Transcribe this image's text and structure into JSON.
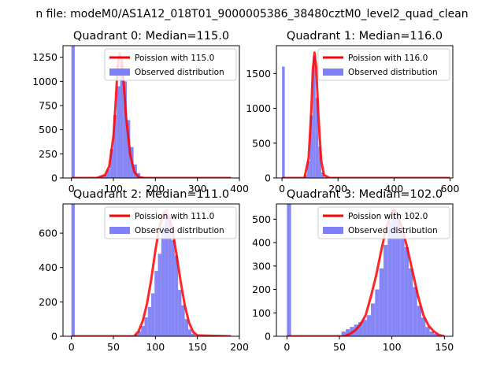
{
  "suptitle": "n file: modeM0/AS1A12_018T01_9000005386_38480cztM0_level2_quad_clean",
  "colors": {
    "observed": "#7f7ff7",
    "poisson": "#ff0000",
    "axis": "#000000"
  },
  "chart_data": [
    {
      "type": "bar",
      "title": "Quadrant 0: Median=115.0",
      "xlim": [
        -20,
        400
      ],
      "ylim": [
        0,
        1370
      ],
      "xticks": [
        0,
        100,
        200,
        300,
        400
      ],
      "yticks": [
        0,
        250,
        500,
        750,
        1000,
        1250
      ],
      "bins": {
        "x": [
          0,
          8,
          60,
          68,
          76,
          84,
          92,
          100,
          108,
          116,
          124,
          132,
          140,
          148,
          156,
          164,
          172,
          180
        ],
        "values": [
          1370,
          5,
          5,
          15,
          35,
          90,
          300,
          650,
          950,
          1200,
          1000,
          600,
          320,
          140,
          50,
          15,
          5,
          2
        ],
        "width": 8
      },
      "poisson": {
        "x": [
          0,
          60,
          80,
          90,
          100,
          105,
          110,
          115,
          120,
          125,
          130,
          140,
          150,
          160,
          170,
          180,
          200,
          380
        ],
        "y": [
          0,
          0,
          30,
          120,
          430,
          750,
          1150,
          1290,
          1210,
          950,
          640,
          240,
          60,
          10,
          0,
          0,
          0,
          0
        ]
      },
      "legend": {
        "loc": "upper right",
        "entries": [
          "Poission with 115.0",
          "Observed distribution"
        ]
      }
    },
    {
      "type": "bar",
      "title": "Quadrant 1: Median=116.0",
      "xlim": [
        -20,
        610
      ],
      "ylim": [
        0,
        1900
      ],
      "xticks": [
        0,
        200,
        400,
        600
      ],
      "yticks": [
        0,
        500,
        1000,
        1500
      ],
      "bins": {
        "x": [
          0,
          80,
          90,
          100,
          110,
          120,
          130,
          140,
          150
        ],
        "values": [
          1600,
          40,
          240,
          900,
          1750,
          1150,
          450,
          80,
          10
        ],
        "width": 10
      },
      "poisson": {
        "x": [
          0,
          80,
          95,
          105,
          110,
          116,
          122,
          130,
          140,
          150,
          170,
          600
        ],
        "y": [
          0,
          0,
          280,
          1000,
          1550,
          1800,
          1600,
          900,
          250,
          40,
          0,
          0
        ]
      },
      "legend": {
        "loc": "upper right",
        "entries": [
          "Poission with 116.0",
          "Observed distribution"
        ]
      }
    },
    {
      "type": "bar",
      "title": "Quadrant 2: Median=111.0",
      "xlim": [
        -10,
        200
      ],
      "ylim": [
        0,
        770
      ],
      "xticks": [
        0,
        50,
        100,
        150,
        200
      ],
      "yticks": [
        0,
        200,
        400,
        600
      ],
      "bins": {
        "x": [
          0,
          75,
          79,
          83,
          87,
          91,
          95,
          99,
          103,
          107,
          111,
          115,
          119,
          123,
          127,
          131,
          135,
          139,
          143
        ],
        "values": [
          770,
          15,
          30,
          60,
          110,
          170,
          250,
          380,
          480,
          640,
          740,
          690,
          560,
          470,
          270,
          180,
          100,
          40,
          15
        ],
        "width": 4
      },
      "poisson": {
        "x": [
          0,
          75,
          80,
          85,
          90,
          95,
          100,
          105,
          110,
          115,
          120,
          125,
          130,
          135,
          140,
          145,
          150,
          190
        ],
        "y": [
          0,
          0,
          30,
          90,
          190,
          330,
          500,
          640,
          720,
          710,
          630,
          480,
          320,
          180,
          80,
          25,
          5,
          0
        ]
      },
      "legend": {
        "loc": "upper right",
        "entries": [
          "Poission with 111.0",
          "Observed distribution"
        ]
      }
    },
    {
      "type": "bar",
      "title": "Quadrant 3: Median=102.0",
      "xlim": [
        -10,
        158
      ],
      "ylim": [
        0,
        565
      ],
      "xticks": [
        0,
        50,
        100,
        150
      ],
      "yticks": [
        0,
        100,
        200,
        300,
        400,
        500
      ],
      "bins": {
        "x": [
          0,
          52,
          56,
          60,
          64,
          68,
          72,
          76,
          80,
          84,
          88,
          92,
          96,
          100,
          104,
          108,
          112,
          116,
          120,
          124,
          128,
          132,
          136,
          140
        ],
        "values": [
          565,
          20,
          30,
          40,
          50,
          60,
          70,
          90,
          140,
          200,
          290,
          390,
          490,
          540,
          510,
          460,
          380,
          290,
          210,
          130,
          80,
          40,
          20,
          10
        ],
        "width": 4
      },
      "poisson": {
        "x": [
          0,
          55,
          60,
          65,
          70,
          75,
          80,
          85,
          90,
          95,
          100,
          102,
          105,
          110,
          115,
          120,
          125,
          130,
          135,
          140,
          145,
          150
        ],
        "y": [
          0,
          0,
          10,
          25,
          50,
          90,
          170,
          260,
          370,
          470,
          530,
          540,
          520,
          460,
          370,
          270,
          170,
          90,
          45,
          20,
          5,
          0
        ]
      },
      "legend": {
        "loc": "upper right",
        "entries": [
          "Poission with 102.0",
          "Observed distribution"
        ]
      }
    }
  ]
}
